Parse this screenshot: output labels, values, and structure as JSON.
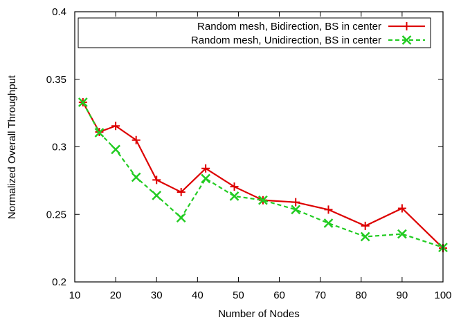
{
  "chart_data": {
    "type": "line",
    "title": "",
    "xlabel": "Number of Nodes",
    "ylabel": "Normalized Overall Throughput",
    "xlim": [
      10,
      100
    ],
    "ylim": [
      0.2,
      0.4
    ],
    "xticks": [
      10,
      20,
      30,
      40,
      50,
      60,
      70,
      80,
      90,
      100
    ],
    "xtick_labels": [
      "10",
      "20",
      "30",
      "40",
      "50",
      "60",
      "70",
      "80",
      "90",
      "100"
    ],
    "yticks": [
      0.2,
      0.25,
      0.3,
      0.35,
      0.4
    ],
    "ytick_labels": [
      "0.2",
      "0.25",
      "0.3",
      "0.35",
      "0.4"
    ],
    "grid": false,
    "legend_position": "top-right",
    "series": [
      {
        "name": "Random mesh, Bidirection, BS in center",
        "color": "#dd0000",
        "line_style": "solid",
        "marker": "plus",
        "x": [
          12,
          16,
          20,
          25,
          30,
          36,
          42,
          49,
          56,
          64,
          72,
          81,
          90,
          100
        ],
        "y": [
          0.333,
          0.311,
          0.3155,
          0.305,
          0.2755,
          0.2665,
          0.284,
          0.2705,
          0.2605,
          0.259,
          0.2535,
          0.2415,
          0.2545,
          0.225
        ]
      },
      {
        "name": "Random mesh, Unidirection, BS in center",
        "color": "#22cc22",
        "line_style": "dashed",
        "marker": "cross",
        "x": [
          12,
          16,
          20,
          25,
          30,
          36,
          42,
          49,
          56,
          64,
          72,
          81,
          90,
          100
        ],
        "y": [
          0.333,
          0.3105,
          0.298,
          0.2775,
          0.264,
          0.2475,
          0.2765,
          0.2635,
          0.2605,
          0.2535,
          0.2435,
          0.2335,
          0.2355,
          0.2255
        ]
      }
    ]
  }
}
